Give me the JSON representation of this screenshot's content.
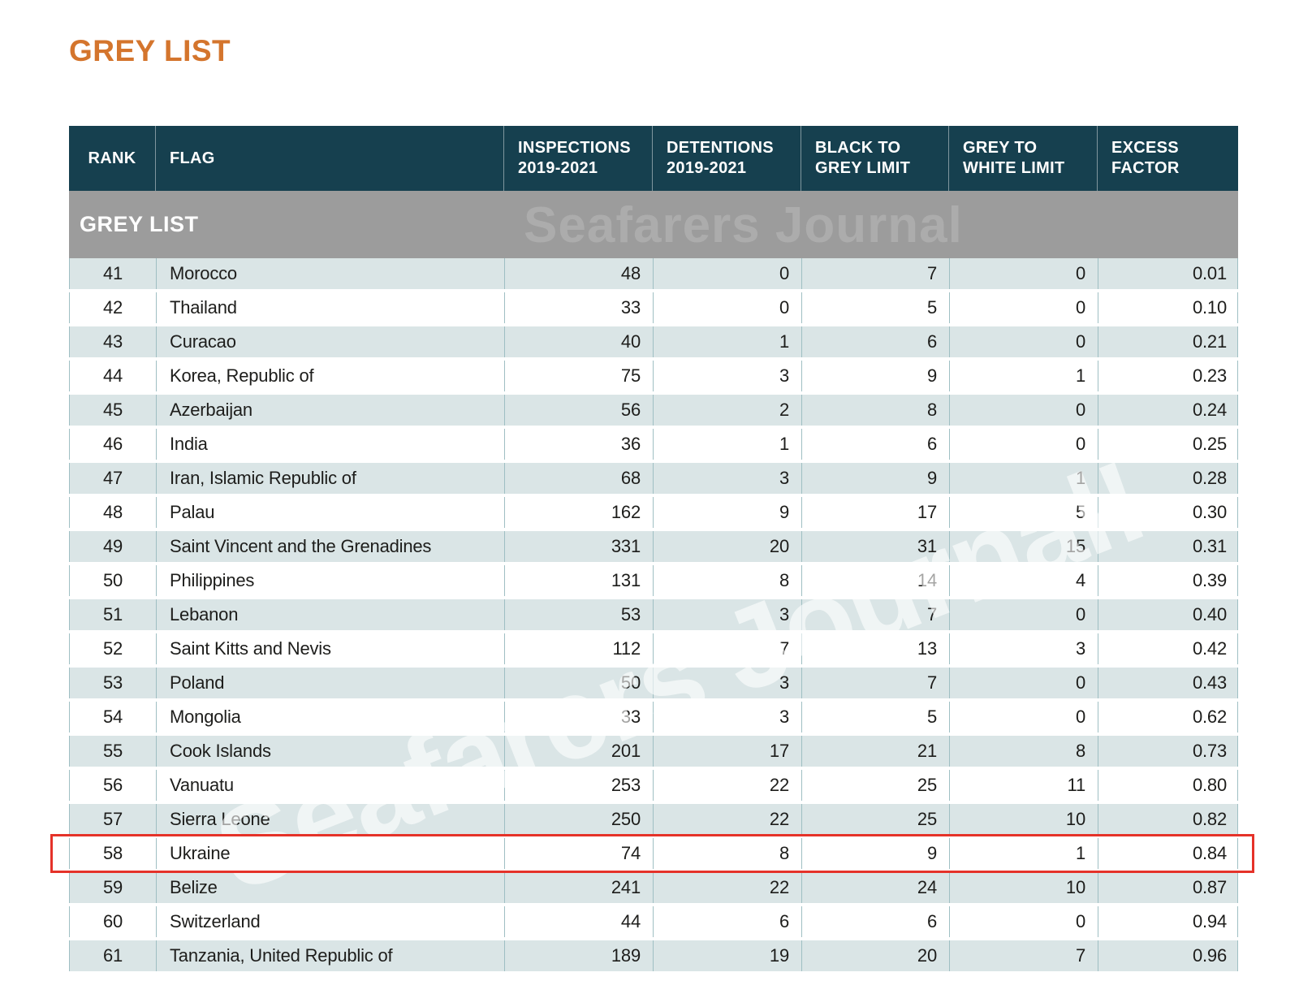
{
  "page": {
    "title": "GREY LIST"
  },
  "watermark": {
    "band_text": "Seafarers Journal",
    "diagonal_text": "Seafarers Journal!"
  },
  "colors": {
    "title_orange": "#D4752D",
    "header_teal": "#16404F",
    "band_grey": "#9C9C9C",
    "row_light": "#DAE5E6",
    "grid_line": "#9FBFC3",
    "highlight_red": "#E53229"
  },
  "chart_data": {
    "type": "table",
    "title": "GREY LIST",
    "section_label": "GREY LIST",
    "columns": [
      {
        "key": "rank",
        "label_lines": [
          "RANK"
        ],
        "align": "center"
      },
      {
        "key": "flag",
        "label_lines": [
          "FLAG"
        ],
        "align": "left"
      },
      {
        "key": "inspections",
        "label_lines": [
          "INSPECTIONS",
          "2019-2021"
        ],
        "align": "right"
      },
      {
        "key": "detentions",
        "label_lines": [
          "DETENTIONS",
          "2019-2021"
        ],
        "align": "right"
      },
      {
        "key": "black_to_grey",
        "label_lines": [
          "BLACK TO",
          "GREY LIMIT"
        ],
        "align": "right"
      },
      {
        "key": "grey_to_white",
        "label_lines": [
          "GREY TO",
          "WHITE LIMIT"
        ],
        "align": "right"
      },
      {
        "key": "excess_factor",
        "label_lines": [
          "EXCESS",
          "FACTOR"
        ],
        "align": "right"
      }
    ],
    "highlighted_rank": 58,
    "rows": [
      {
        "rank": 41,
        "flag": "Morocco",
        "inspections": 48,
        "detentions": 0,
        "black_to_grey": 7,
        "grey_to_white": 0,
        "excess_factor": "0.01"
      },
      {
        "rank": 42,
        "flag": "Thailand",
        "inspections": 33,
        "detentions": 0,
        "black_to_grey": 5,
        "grey_to_white": 0,
        "excess_factor": "0.10"
      },
      {
        "rank": 43,
        "flag": "Curacao",
        "inspections": 40,
        "detentions": 1,
        "black_to_grey": 6,
        "grey_to_white": 0,
        "excess_factor": "0.21"
      },
      {
        "rank": 44,
        "flag": "Korea, Republic of",
        "inspections": 75,
        "detentions": 3,
        "black_to_grey": 9,
        "grey_to_white": 1,
        "excess_factor": "0.23"
      },
      {
        "rank": 45,
        "flag": "Azerbaijan",
        "inspections": 56,
        "detentions": 2,
        "black_to_grey": 8,
        "grey_to_white": 0,
        "excess_factor": "0.24"
      },
      {
        "rank": 46,
        "flag": "India",
        "inspections": 36,
        "detentions": 1,
        "black_to_grey": 6,
        "grey_to_white": 0,
        "excess_factor": "0.25"
      },
      {
        "rank": 47,
        "flag": "Iran, Islamic Republic of",
        "inspections": 68,
        "detentions": 3,
        "black_to_grey": 9,
        "grey_to_white": 1,
        "excess_factor": "0.28"
      },
      {
        "rank": 48,
        "flag": "Palau",
        "inspections": 162,
        "detentions": 9,
        "black_to_grey": 17,
        "grey_to_white": 5,
        "excess_factor": "0.30"
      },
      {
        "rank": 49,
        "flag": "Saint Vincent and the Grenadines",
        "inspections": 331,
        "detentions": 20,
        "black_to_grey": 31,
        "grey_to_white": 15,
        "excess_factor": "0.31"
      },
      {
        "rank": 50,
        "flag": "Philippines",
        "inspections": 131,
        "detentions": 8,
        "black_to_grey": 14,
        "grey_to_white": 4,
        "excess_factor": "0.39"
      },
      {
        "rank": 51,
        "flag": "Lebanon",
        "inspections": 53,
        "detentions": 3,
        "black_to_grey": 7,
        "grey_to_white": 0,
        "excess_factor": "0.40"
      },
      {
        "rank": 52,
        "flag": "Saint Kitts and Nevis",
        "inspections": 112,
        "detentions": 7,
        "black_to_grey": 13,
        "grey_to_white": 3,
        "excess_factor": "0.42"
      },
      {
        "rank": 53,
        "flag": "Poland",
        "inspections": 50,
        "detentions": 3,
        "black_to_grey": 7,
        "grey_to_white": 0,
        "excess_factor": "0.43"
      },
      {
        "rank": 54,
        "flag": "Mongolia",
        "inspections": 33,
        "detentions": 3,
        "black_to_grey": 5,
        "grey_to_white": 0,
        "excess_factor": "0.62"
      },
      {
        "rank": 55,
        "flag": "Cook Islands",
        "inspections": 201,
        "detentions": 17,
        "black_to_grey": 21,
        "grey_to_white": 8,
        "excess_factor": "0.73"
      },
      {
        "rank": 56,
        "flag": "Vanuatu",
        "inspections": 253,
        "detentions": 22,
        "black_to_grey": 25,
        "grey_to_white": 11,
        "excess_factor": "0.80"
      },
      {
        "rank": 57,
        "flag": "Sierra Leone",
        "inspections": 250,
        "detentions": 22,
        "black_to_grey": 25,
        "grey_to_white": 10,
        "excess_factor": "0.82"
      },
      {
        "rank": 58,
        "flag": "Ukraine",
        "inspections": 74,
        "detentions": 8,
        "black_to_grey": 9,
        "grey_to_white": 1,
        "excess_factor": "0.84"
      },
      {
        "rank": 59,
        "flag": "Belize",
        "inspections": 241,
        "detentions": 22,
        "black_to_grey": 24,
        "grey_to_white": 10,
        "excess_factor": "0.87"
      },
      {
        "rank": 60,
        "flag": "Switzerland",
        "inspections": 44,
        "detentions": 6,
        "black_to_grey": 6,
        "grey_to_white": 0,
        "excess_factor": "0.94"
      },
      {
        "rank": 61,
        "flag": "Tanzania, United Republic of",
        "inspections": 189,
        "detentions": 19,
        "black_to_grey": 20,
        "grey_to_white": 7,
        "excess_factor": "0.96"
      }
    ]
  }
}
